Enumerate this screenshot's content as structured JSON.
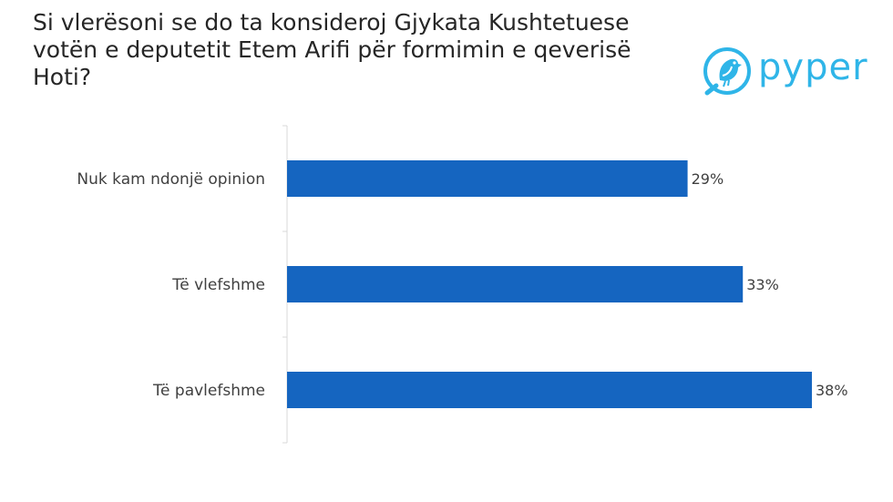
{
  "title": "Si vlerësoni se do ta konsideroj Gjykata Kushtetuese votën e deputetit Etem Arifi për formimin e qeverisë Hoti?",
  "logo": {
    "text": "pyper",
    "icon": "bird-icon",
    "color": "#2fb5e8"
  },
  "chart_data": {
    "type": "bar",
    "orientation": "horizontal",
    "categories": [
      "Nuk kam ndonjë opinion",
      "Të vlefshme",
      "Të pavlefshme"
    ],
    "values": [
      29,
      33,
      38
    ],
    "value_labels": [
      "29%",
      "33%",
      "38%"
    ],
    "xlim": [
      0,
      38
    ],
    "bar_color": "#1565c0",
    "grid": false,
    "legend": "none"
  }
}
